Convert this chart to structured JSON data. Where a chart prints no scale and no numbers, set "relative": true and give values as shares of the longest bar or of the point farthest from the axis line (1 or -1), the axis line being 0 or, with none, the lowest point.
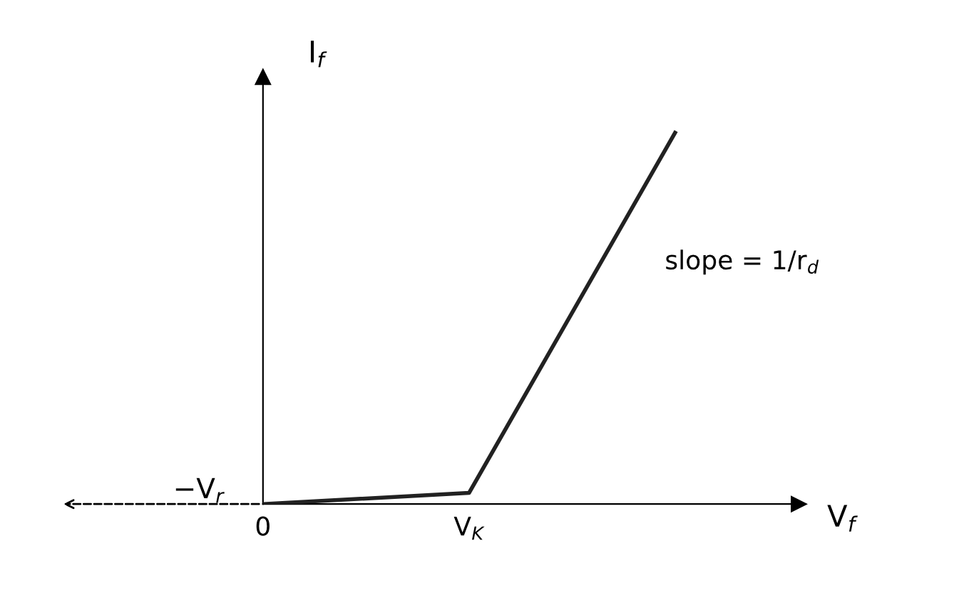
{
  "chart_data": {
    "type": "line",
    "relative": true,
    "xlabel": "V$_{f}$",
    "ylabel": "I$_{f}$",
    "categories": [
      "0",
      "V$_{K}$",
      null
    ],
    "series": [
      {
        "color": "#222222",
        "values": [
          0,
          0.03,
          1
        ]
      }
    ],
    "annotations": [
      "−V$_{r}$",
      "slope = 1/r$_{d}$"
    ],
    "marker": "none",
    "line_style": "solid",
    "grid": false
  }
}
